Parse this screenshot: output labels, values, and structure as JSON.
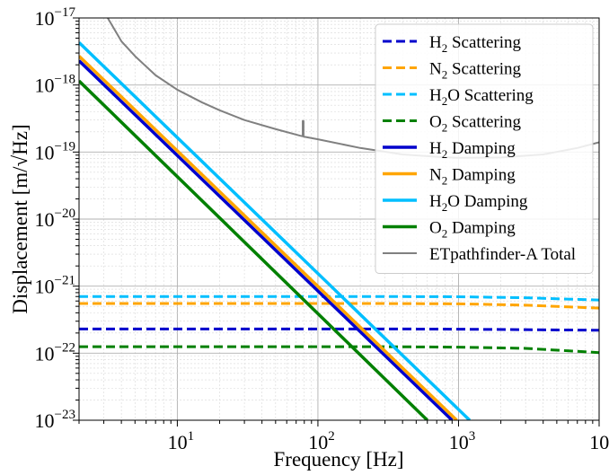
{
  "chart_data": {
    "type": "line",
    "x_scale": "log",
    "y_scale": "log",
    "xlim": [
      2,
      10000
    ],
    "ylim": [
      1e-23,
      1e-17
    ],
    "xlabel": "Frequency [Hz]",
    "ylabel": "Displacement [m/√Hz]",
    "grid": true,
    "legend_position": "upper-right",
    "x_ticks": [
      {
        "value": 10,
        "base": "10",
        "exp": "1"
      },
      {
        "value": 100,
        "base": "10",
        "exp": "2"
      },
      {
        "value": 1000,
        "base": "10",
        "exp": "3"
      },
      {
        "value": 10000,
        "base": "10",
        "exp": "4"
      }
    ],
    "y_ticks": [
      {
        "value": 1e-17,
        "base": "10",
        "exp": "−17"
      },
      {
        "value": 1e-18,
        "base": "10",
        "exp": "−18"
      },
      {
        "value": 1e-19,
        "base": "10",
        "exp": "−19"
      },
      {
        "value": 1e-20,
        "base": "10",
        "exp": "−20"
      },
      {
        "value": 1e-21,
        "base": "10",
        "exp": "−21"
      },
      {
        "value": 1e-22,
        "base": "10",
        "exp": "−22"
      },
      {
        "value": 1e-23,
        "base": "10",
        "exp": "−23"
      }
    ],
    "series": [
      {
        "name": "H2 Scattering",
        "label_parts": [
          "H",
          "2",
          " Scattering"
        ],
        "color": "#0000cc",
        "style": "dashed",
        "points": [
          [
            2,
            2.3e-22
          ],
          [
            300,
            2.3e-22
          ],
          [
            1000,
            2.28e-22
          ],
          [
            3000,
            2.24e-22
          ],
          [
            10000,
            2.2e-22
          ]
        ]
      },
      {
        "name": "N2 Scattering",
        "label_parts": [
          "N",
          "2",
          " Scattering"
        ],
        "color": "#ffa500",
        "style": "dashed",
        "points": [
          [
            2,
            5.5e-22
          ],
          [
            300,
            5.5e-22
          ],
          [
            1000,
            5.45e-22
          ],
          [
            3000,
            5.2e-22
          ],
          [
            10000,
            4.7e-22
          ]
        ]
      },
      {
        "name": "H2O Scattering",
        "label_parts": [
          "H",
          "2",
          "O Scattering"
        ],
        "color": "#00bfff",
        "style": "dashed",
        "points": [
          [
            2,
            7e-22
          ],
          [
            300,
            7e-22
          ],
          [
            1000,
            6.95e-22
          ],
          [
            3000,
            6.7e-22
          ],
          [
            10000,
            6.2e-22
          ]
        ]
      },
      {
        "name": "O2 Scattering",
        "label_parts": [
          "O",
          "2",
          " Scattering"
        ],
        "color": "#008000",
        "style": "dashed",
        "points": [
          [
            2,
            1.25e-22
          ],
          [
            300,
            1.25e-22
          ],
          [
            1000,
            1.23e-22
          ],
          [
            3000,
            1.18e-22
          ],
          [
            10000,
            1.02e-22
          ]
        ]
      },
      {
        "name": "H2 Damping",
        "label_parts": [
          "H",
          "2",
          " Damping"
        ],
        "color": "#0000cc",
        "style": "solid",
        "points": [
          [
            2,
            2.3e-18
          ],
          [
            900,
            1e-23
          ]
        ]
      },
      {
        "name": "N2 Damping",
        "label_parts": [
          "N",
          "2",
          " Damping"
        ],
        "color": "#ffa500",
        "style": "solid",
        "points": [
          [
            2,
            2.7e-18
          ],
          [
            970,
            1e-23
          ]
        ]
      },
      {
        "name": "H2O Damping",
        "label_parts": [
          "H",
          "2",
          "O Damping"
        ],
        "color": "#00bfff",
        "style": "solid",
        "points": [
          [
            2,
            4.3e-18
          ],
          [
            1200,
            1e-23
          ]
        ]
      },
      {
        "name": "O2 Damping",
        "label_parts": [
          "O",
          "2",
          " Damping"
        ],
        "color": "#008000",
        "style": "solid",
        "points": [
          [
            2,
            1.15e-18
          ],
          [
            600,
            1e-23
          ]
        ]
      },
      {
        "name": "ETpathfinder-A Total",
        "label_parts": [
          "ETpathfinder-A Total",
          "",
          ""
        ],
        "color": "#808080",
        "style": "thin",
        "points": [
          [
            3.2,
            1e-17
          ],
          [
            4,
            4.5e-18
          ],
          [
            5,
            2.7e-18
          ],
          [
            7,
            1.4e-18
          ],
          [
            10,
            8.5e-19
          ],
          [
            15,
            5.5e-19
          ],
          [
            20,
            4.2e-19
          ],
          [
            30,
            3e-19
          ],
          [
            50,
            2.2e-19
          ],
          [
            75,
            1.75e-19
          ],
          [
            78,
            1.72e-19
          ],
          [
            78,
            2.9e-19
          ],
          [
            79,
            2.9e-19
          ],
          [
            79,
            1.7e-19
          ],
          [
            100,
            1.55e-19
          ],
          [
            200,
            1.15e-19
          ],
          [
            400,
            9.2e-20
          ],
          [
            700,
            8.5e-20
          ],
          [
            1000,
            8.2e-20
          ],
          [
            2000,
            8.3e-20
          ],
          [
            4000,
            9.2e-20
          ],
          [
            7000,
            1.15e-19
          ],
          [
            10000,
            1.4e-19
          ]
        ]
      }
    ]
  }
}
